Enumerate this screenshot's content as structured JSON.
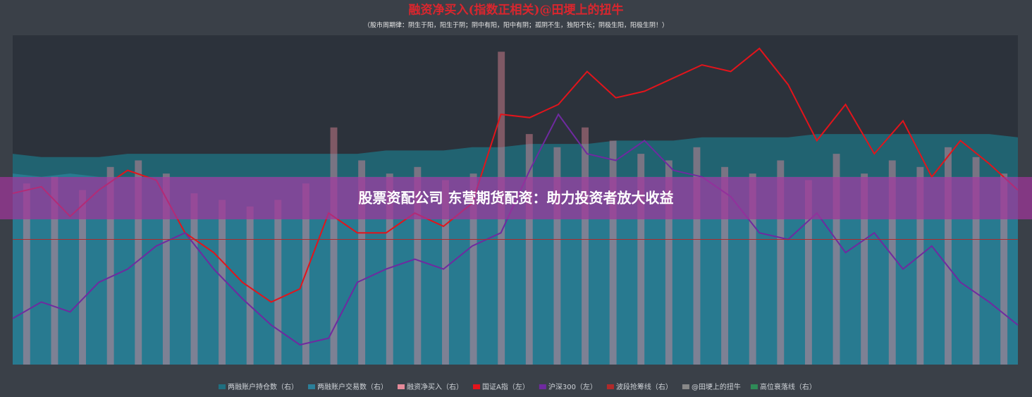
{
  "chart_data": {
    "type": "line",
    "title": "融资净买入(指数正相关)@田埂上的扭牛",
    "subtitle": "（股市周期律：阴生于阳，阳生于阴；阴中有阳，阳中有阴；孤阴不生，独阳不长；阴极生阳，阳极生阴！）",
    "ylim": [
      0,
      100
    ],
    "series": [
      {
        "name": "两融账户持仓数（右）",
        "color": "#1f6f80",
        "kind": "area",
        "values": [
          64,
          63,
          63,
          63,
          64,
          64,
          64,
          64,
          64,
          64,
          64,
          64,
          64,
          65,
          65,
          65,
          66,
          66,
          67,
          67,
          67,
          68,
          68,
          68,
          69,
          69,
          69,
          69,
          70,
          70,
          70,
          70,
          70,
          70,
          70,
          69
        ]
      },
      {
        "name": "两融账户交易数（右）",
        "color": "#2b7f99",
        "kind": "area",
        "values": [
          58,
          57,
          58,
          57,
          57,
          57,
          57,
          57,
          57,
          57,
          57,
          57,
          57,
          57,
          57,
          57,
          57,
          57,
          57,
          57,
          57,
          57,
          57,
          57,
          57,
          57,
          57,
          57,
          57,
          57,
          57,
          57,
          57,
          57,
          57,
          57
        ]
      },
      {
        "name": "融资净买入（右）",
        "color": "#e58a9a",
        "kind": "bar",
        "values": [
          55,
          57,
          53,
          60,
          62,
          58,
          52,
          50,
          48,
          50,
          55,
          72,
          62,
          58,
          60,
          56,
          58,
          95,
          70,
          66,
          72,
          68,
          64,
          62,
          66,
          60,
          58,
          62,
          56,
          64,
          58,
          62,
          60,
          66,
          63,
          58
        ]
      },
      {
        "name": "国证A指（左）",
        "color": "#e3141b",
        "kind": "line",
        "values": [
          52,
          54,
          45,
          53,
          59,
          56,
          40,
          34,
          25,
          19,
          23,
          46,
          40,
          40,
          46,
          42,
          49,
          76,
          75,
          79,
          89,
          81,
          83,
          87,
          91,
          89,
          96,
          85,
          68,
          79,
          64,
          74,
          57,
          68,
          61,
          53
        ]
      },
      {
        "name": "沪深300（左）",
        "color": "#6f2aa0",
        "kind": "line",
        "values": [
          14,
          19,
          16,
          25,
          29,
          36,
          40,
          29,
          20,
          12,
          6,
          8,
          25,
          29,
          32,
          29,
          36,
          40,
          59,
          76,
          64,
          62,
          68,
          59,
          57,
          51,
          40,
          38,
          46,
          34,
          40,
          29,
          36,
          25,
          19,
          12
        ]
      },
      {
        "name": "波段抢筹线（右）",
        "color": "#b02a2a",
        "kind": "hline",
        "values": [
          38
        ]
      }
    ],
    "legend_extra": [
      {
        "name": "@田埂上的扭牛",
        "color": "#888888"
      },
      {
        "name": "高位衰落线（右）",
        "color": "#2e8b57"
      }
    ]
  },
  "banner": {
    "text": "股票资配公司 东营期货配资：助力投资者放大收益"
  }
}
